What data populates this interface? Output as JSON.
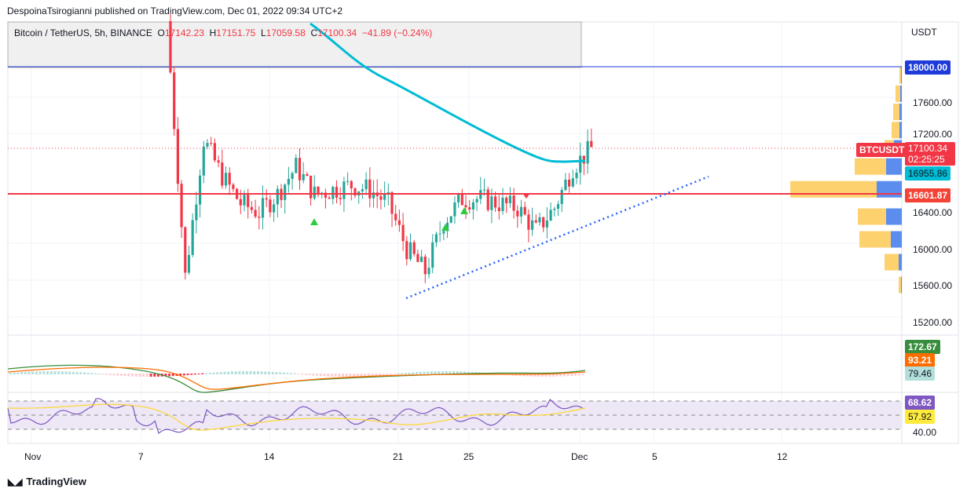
{
  "published": "DespoinaTsirogianni published on TradingView.com, Dec 01, 2022 09:34 UTC+2",
  "legend": {
    "symbol": "Bitcoin / TetherUS, 5h, BINANCE",
    "o_label": "O",
    "o": "17142.23",
    "h_label": "H",
    "h": "17151.75",
    "l_label": "L",
    "l": "17059.58",
    "c_label": "C",
    "c": "17100.34",
    "change": "−41.89 (−0.24%)"
  },
  "price_axis": {
    "currency": "USDT",
    "ticks": [
      "17600.00",
      "17200.00",
      "16400.00",
      "16000.00",
      "15600.00",
      "15200.00"
    ]
  },
  "labels": {
    "level_18000": "18000.00",
    "symbol_tag": "BTCUSDT",
    "last_price": "17100.34",
    "countdown": "02:25:25",
    "ema": "16955.86",
    "support": "16601.87",
    "macd1": "172.67",
    "macd2": "93.21",
    "macd3": "79.46",
    "rsi": "68.62",
    "rsi_ma": "57.92",
    "rsi_level": "40.00"
  },
  "time_axis": [
    "Nov",
    "7",
    "14",
    "21",
    "25",
    "Dec",
    "5",
    "12"
  ],
  "footer": {
    "brand": "TradingView"
  },
  "colors": {
    "up": "#26a69a",
    "down": "#f23645",
    "ema": "#00bcd4",
    "support": "#f23645",
    "trend": "#2962ff",
    "vp_up": "#5b8def",
    "vp_down": "#fdd26e"
  },
  "chart_data": {
    "type": "candlestick",
    "price_range": [
      15200,
      18000
    ],
    "daily_path": [
      [
        "Nov 8",
        18500
      ],
      [
        "Nov 9",
        15700
      ],
      [
        "Nov 10",
        17200
      ],
      [
        "Nov 11",
        16800
      ],
      [
        "Nov 12",
        16500
      ],
      [
        "Nov 13",
        16400
      ],
      [
        "Nov 14",
        16600
      ],
      [
        "Nov 15",
        16900
      ],
      [
        "Nov 16",
        16600
      ],
      [
        "Nov 17",
        16650
      ],
      [
        "Nov 18",
        16700
      ],
      [
        "Nov 19",
        16650
      ],
      [
        "Nov 20",
        16500
      ],
      [
        "Nov 21",
        16000
      ],
      [
        "Nov 22",
        15750
      ],
      [
        "Nov 23",
        16300
      ],
      [
        "Nov 24",
        16550
      ],
      [
        "Nov 25",
        16550
      ],
      [
        "Nov 26",
        16500
      ],
      [
        "Nov 27",
        16450
      ],
      [
        "Nov 28",
        16200
      ],
      [
        "Nov 29",
        16450
      ],
      [
        "Nov 30",
        16900
      ],
      [
        "Dec 1",
        17100
      ]
    ],
    "volume_profile": [
      [
        17900,
        2,
        2
      ],
      [
        17700,
        4,
        6
      ],
      [
        17500,
        6,
        8
      ],
      [
        17300,
        6,
        10
      ],
      [
        17100,
        20,
        12
      ],
      [
        16900,
        40,
        40
      ],
      [
        16650,
        64,
        110
      ],
      [
        16350,
        40,
        36
      ],
      [
        16100,
        28,
        40
      ],
      [
        15850,
        8,
        18
      ],
      [
        15600,
        2,
        3
      ]
    ]
  }
}
